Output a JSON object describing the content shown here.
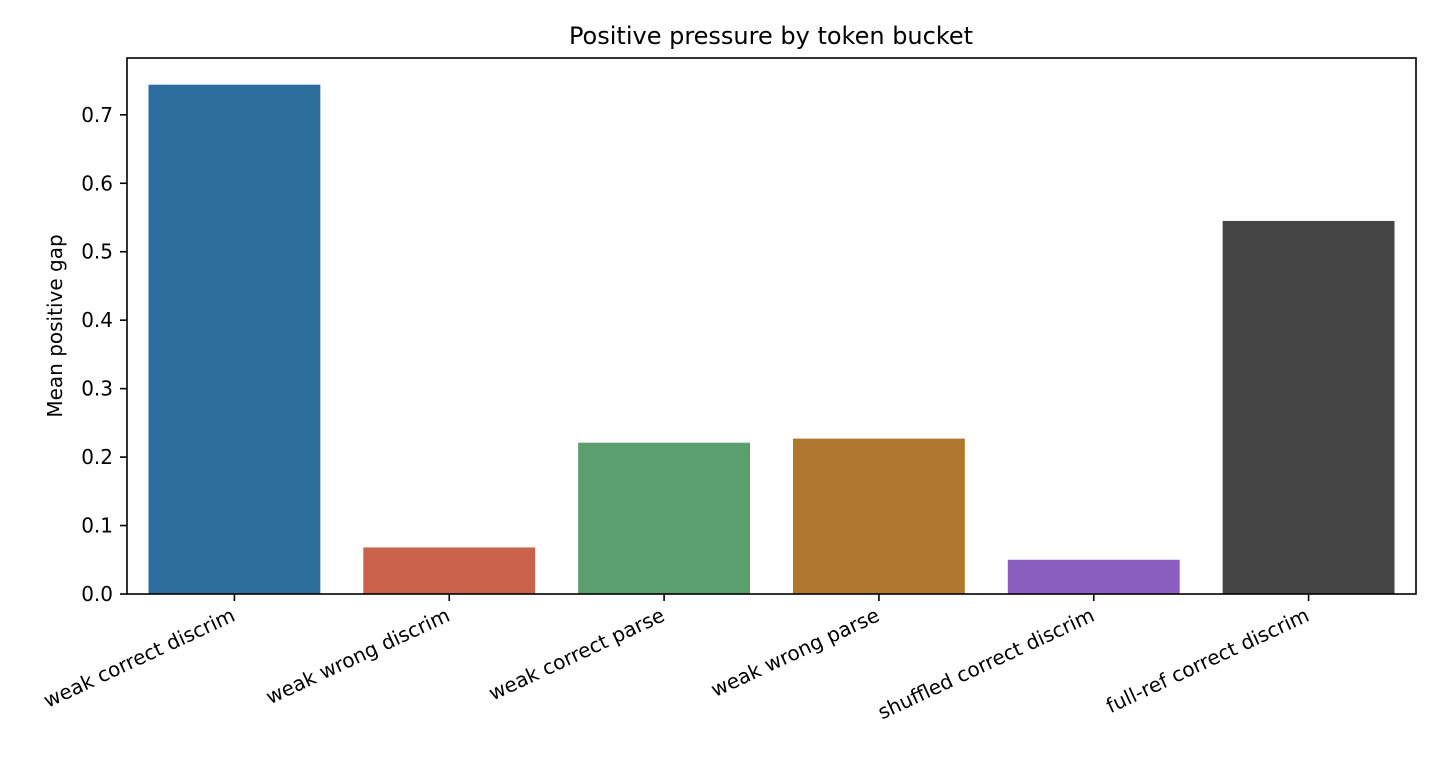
{
  "chart_data": {
    "type": "bar",
    "title": "Positive pressure by token bucket",
    "xlabel": "",
    "ylabel": "Mean positive gap",
    "categories": [
      "weak correct discrim",
      "weak wrong discrim",
      "weak correct parse",
      "weak wrong parse",
      "shuffled correct discrim",
      "full-ref correct discrim"
    ],
    "values": [
      0.744,
      0.068,
      0.221,
      0.227,
      0.05,
      0.545
    ],
    "colors": [
      "#2e6e9e",
      "#c8624a",
      "#5b9f6f",
      "#b0782e",
      "#8b5fbf",
      "#454545"
    ],
    "ylim": [
      0,
      0.783
    ],
    "yticks": [
      0.0,
      0.1,
      0.2,
      0.3,
      0.4,
      0.5,
      0.6,
      0.7
    ],
    "ytick_labels": [
      "0.0",
      "0.1",
      "0.2",
      "0.3",
      "0.4",
      "0.5",
      "0.6",
      "0.7"
    ],
    "grid": false,
    "legend": "none"
  }
}
